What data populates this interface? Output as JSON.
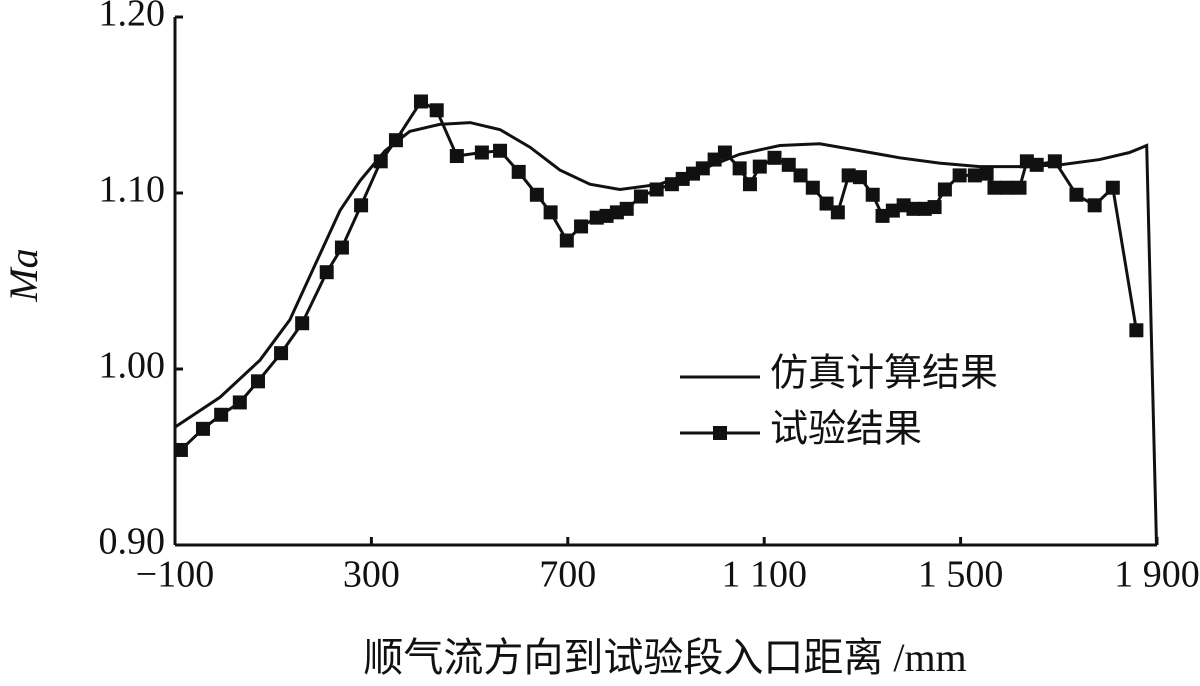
{
  "chart_data": {
    "type": "line",
    "xlabel": "顺气流方向到试验段入口距离 /mm",
    "ylabel": "Ma",
    "xlim": [
      -100,
      1900
    ],
    "ylim": [
      0.9,
      1.2
    ],
    "xticks": [
      {
        "value": -100,
        "label": "−100"
      },
      300,
      700,
      {
        "value": 1100,
        "label": "1 100"
      },
      {
        "value": 1500,
        "label": "1 500"
      },
      {
        "value": 1900,
        "label": "1 900"
      }
    ],
    "yticks": [
      {
        "value": 0.9,
        "label": "0.90"
      },
      {
        "value": 1.0,
        "label": "1.00"
      },
      {
        "value": 1.1,
        "label": "1.10"
      },
      {
        "value": 1.2,
        "label": "1.20"
      }
    ],
    "legend": "right",
    "series": [
      {
        "name": "仿真计算结果",
        "color": "#111111",
        "marker": false,
        "x": [
          -100,
          -8,
          73,
          134,
          185,
          236,
          277,
          328,
          378,
          439,
          501,
          562,
          623,
          684,
          745,
          806,
          887,
          969,
          1050,
          1132,
          1213,
          1295,
          1376,
          1457,
          1539,
          1620,
          1702,
          1783,
          1844,
          1879,
          1899
        ],
        "values": [
          0.967,
          0.984,
          1.005,
          1.028,
          1.059,
          1.09,
          1.107,
          1.124,
          1.135,
          1.139,
          1.14,
          1.136,
          1.126,
          1.113,
          1.105,
          1.102,
          1.105,
          1.113,
          1.122,
          1.127,
          1.128,
          1.124,
          1.12,
          1.117,
          1.115,
          1.115,
          1.116,
          1.119,
          1.123,
          1.127,
          0.9
        ]
      },
      {
        "name": "试验结果",
        "color": "#111111",
        "marker": true,
        "x": [
          -88,
          -43,
          -6,
          32,
          69,
          116,
          159,
          209,
          240,
          279,
          319,
          350,
          401,
          433,
          474,
          525,
          562,
          600,
          637,
          665,
          698,
          727,
          759,
          779,
          800,
          820,
          849,
          881,
          912,
          934,
          955,
          975,
          999,
          1020,
          1050,
          1071,
          1091,
          1121,
          1150,
          1174,
          1199,
          1227,
          1250,
          1272,
          1295,
          1321,
          1341,
          1362,
          1384,
          1404,
          1427,
          1447,
          1468,
          1498,
          1529,
          1553,
          1569,
          1594,
          1620,
          1635,
          1655,
          1692,
          1736,
          1773,
          1810,
          1858
        ],
        "values": [
          0.954,
          0.966,
          0.974,
          0.981,
          0.993,
          1.009,
          1.026,
          1.055,
          1.069,
          1.093,
          1.118,
          1.13,
          1.152,
          1.147,
          1.121,
          1.123,
          1.124,
          1.112,
          1.099,
          1.089,
          1.073,
          1.081,
          1.086,
          1.087,
          1.089,
          1.091,
          1.098,
          1.102,
          1.105,
          1.108,
          1.111,
          1.114,
          1.119,
          1.123,
          1.114,
          1.105,
          1.115,
          1.12,
          1.116,
          1.11,
          1.103,
          1.094,
          1.089,
          1.11,
          1.109,
          1.099,
          1.087,
          1.09,
          1.093,
          1.091,
          1.091,
          1.092,
          1.102,
          1.11,
          1.11,
          1.111,
          1.103,
          1.103,
          1.103,
          1.118,
          1.116,
          1.118,
          1.099,
          1.093,
          1.103,
          1.022
        ]
      }
    ]
  }
}
